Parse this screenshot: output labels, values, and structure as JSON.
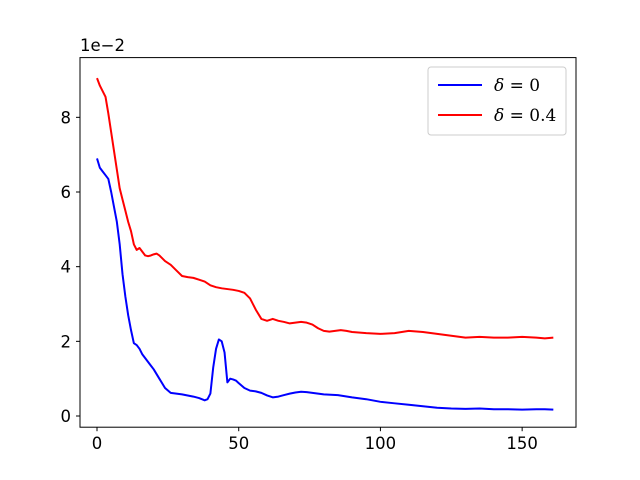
{
  "chart_data": {
    "type": "line",
    "title": "",
    "xlabel": "",
    "ylabel": "",
    "offset_text": "1e−2",
    "xlim": [
      -6,
      169
    ],
    "ylim": [
      -0.3,
      9.6
    ],
    "xticks": [
      0,
      50,
      100,
      150
    ],
    "yticks": [
      0,
      2,
      4,
      6,
      8
    ],
    "legend_position": "top-right",
    "grid": false,
    "series": [
      {
        "name": "δ = 0",
        "name_symbol": "δ",
        "name_rest": " = 0",
        "color": "#0000ff",
        "x": [
          0,
          1,
          2,
          3,
          4,
          5,
          6,
          7,
          8,
          9,
          10,
          11,
          12,
          13,
          14,
          15,
          16,
          17,
          18,
          19,
          20,
          22,
          24,
          26,
          28,
          30,
          32,
          34,
          36,
          38,
          39,
          40,
          41,
          42,
          43,
          44,
          45,
          46,
          47,
          48,
          49,
          50,
          52,
          54,
          56,
          58,
          60,
          62,
          64,
          66,
          68,
          70,
          72,
          74,
          76,
          78,
          80,
          85,
          90,
          95,
          100,
          105,
          110,
          115,
          120,
          125,
          130,
          135,
          140,
          145,
          150,
          155,
          158,
          161
        ],
        "y": [
          6.9,
          6.65,
          6.55,
          6.45,
          6.35,
          6.0,
          5.6,
          5.2,
          4.6,
          3.8,
          3.2,
          2.7,
          2.3,
          1.95,
          1.9,
          1.8,
          1.65,
          1.55,
          1.45,
          1.35,
          1.25,
          1.0,
          0.75,
          0.62,
          0.6,
          0.58,
          0.55,
          0.52,
          0.48,
          0.42,
          0.45,
          0.6,
          1.3,
          1.8,
          2.05,
          2.0,
          1.7,
          0.9,
          1.0,
          0.98,
          0.95,
          0.88,
          0.75,
          0.68,
          0.66,
          0.62,
          0.55,
          0.5,
          0.52,
          0.56,
          0.6,
          0.63,
          0.65,
          0.64,
          0.62,
          0.6,
          0.58,
          0.56,
          0.5,
          0.45,
          0.38,
          0.34,
          0.3,
          0.26,
          0.22,
          0.2,
          0.19,
          0.2,
          0.18,
          0.18,
          0.17,
          0.18,
          0.18,
          0.17
        ]
      },
      {
        "name": "δ = 0.4",
        "name_symbol": "δ",
        "name_rest": " = 0.4",
        "color": "#ff0000",
        "x": [
          0,
          1,
          2,
          3,
          4,
          5,
          6,
          7,
          8,
          9,
          10,
          11,
          12,
          13,
          14,
          15,
          16,
          17,
          18,
          19,
          20,
          21,
          22,
          24,
          26,
          28,
          30,
          32,
          34,
          36,
          38,
          40,
          42,
          44,
          46,
          48,
          50,
          52,
          54,
          56,
          58,
          60,
          62,
          64,
          66,
          68,
          70,
          72,
          74,
          76,
          78,
          80,
          82,
          84,
          86,
          88,
          90,
          95,
          100,
          105,
          110,
          115,
          120,
          125,
          130,
          135,
          140,
          145,
          150,
          155,
          158,
          161
        ],
        "y": [
          9.05,
          8.85,
          8.7,
          8.55,
          8.1,
          7.6,
          7.1,
          6.6,
          6.1,
          5.8,
          5.5,
          5.2,
          4.95,
          4.6,
          4.45,
          4.5,
          4.4,
          4.3,
          4.28,
          4.3,
          4.33,
          4.35,
          4.3,
          4.15,
          4.05,
          3.9,
          3.75,
          3.72,
          3.7,
          3.65,
          3.6,
          3.5,
          3.45,
          3.42,
          3.4,
          3.38,
          3.35,
          3.3,
          3.15,
          2.85,
          2.6,
          2.55,
          2.6,
          2.55,
          2.52,
          2.48,
          2.5,
          2.52,
          2.5,
          2.45,
          2.35,
          2.28,
          2.26,
          2.28,
          2.3,
          2.28,
          2.25,
          2.22,
          2.2,
          2.22,
          2.28,
          2.25,
          2.2,
          2.15,
          2.1,
          2.12,
          2.1,
          2.1,
          2.12,
          2.1,
          2.08,
          2.1
        ]
      }
    ]
  }
}
